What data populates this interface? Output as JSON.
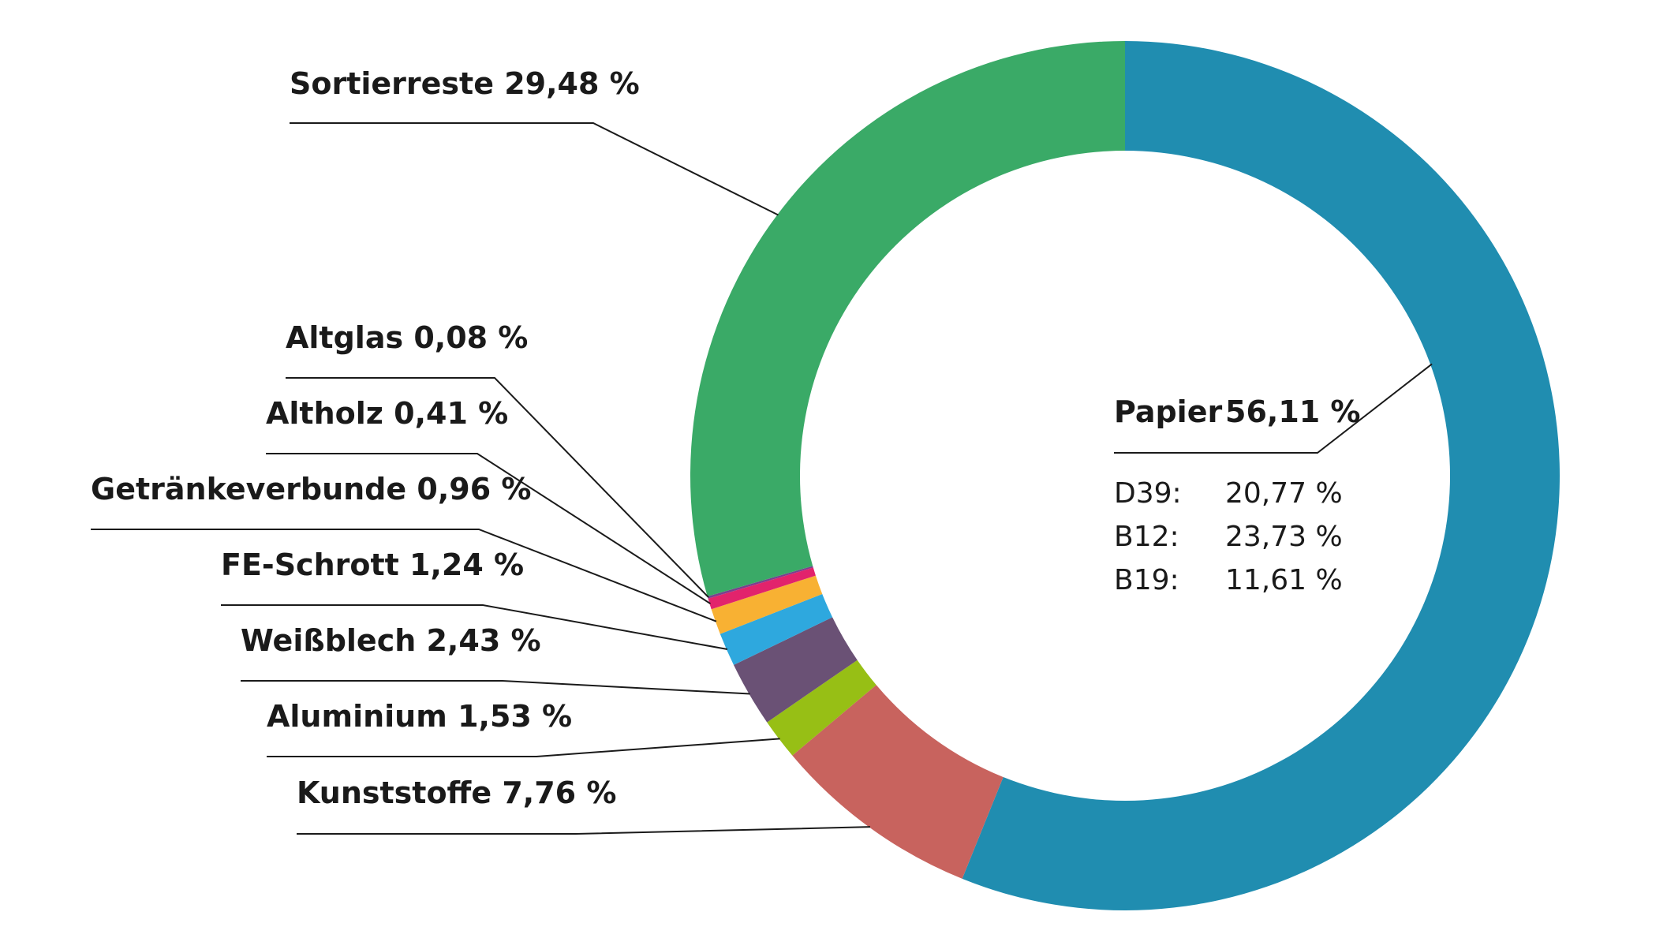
{
  "chart_data": {
    "type": "pie",
    "variant": "donut",
    "title": "",
    "unit": "%",
    "slices": [
      {
        "name": "Papier",
        "value": 56.11,
        "label": "Papier",
        "value_label": "56,11 %",
        "color": "#208DB0"
      },
      {
        "name": "Kunststoffe",
        "value": 7.76,
        "label": "Kunststoffe 7,76 %",
        "color": "#C8635E"
      },
      {
        "name": "Aluminium",
        "value": 1.53,
        "label": "Aluminium 1,53 %",
        "color": "#97BF15"
      },
      {
        "name": "Weißblech",
        "value": 2.43,
        "label": "Weißblech 2,43 %",
        "color": "#6A5175"
      },
      {
        "name": "FE-Schrott",
        "value": 1.24,
        "label": "FE-Schrott 1,24 %",
        "color": "#2EA8DE"
      },
      {
        "name": "Getränkeverbunde",
        "value": 0.96,
        "label": "Getränkeverbunde 0,96 %",
        "color": "#F8B133"
      },
      {
        "name": "Altholz",
        "value": 0.41,
        "label": "Altholz 0,41 %",
        "color": "#E2236C"
      },
      {
        "name": "Altglas",
        "value": 0.08,
        "label": "Altglas 0,08 %",
        "color": "#7A3F8E"
      },
      {
        "name": "Sortierreste",
        "value": 29.48,
        "label": "Sortierreste 29,48 %",
        "color": "#3AAA67"
      }
    ],
    "papier_breakdown": [
      {
        "name": "D39:",
        "value": 20.77,
        "value_label": "20,77 %"
      },
      {
        "name": "B12:",
        "value": 23.73,
        "value_label": "23,73 %"
      },
      {
        "name": "B19:",
        "value": 11.61,
        "value_label": "11,61 %"
      }
    ]
  }
}
